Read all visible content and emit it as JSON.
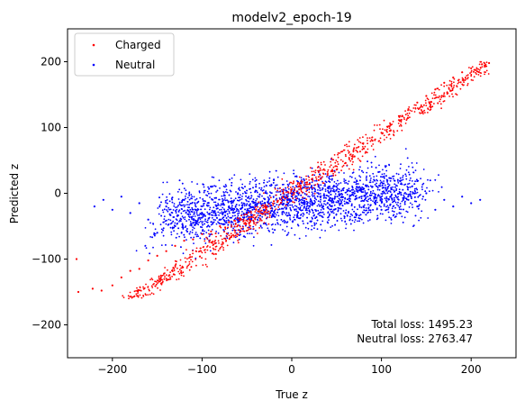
{
  "chart_data": {
    "type": "scatter",
    "title": "modelv2_epoch-19",
    "xlabel": "True z",
    "ylabel": "Predicted z",
    "xlim": [
      -250,
      250
    ],
    "ylim": [
      -250,
      250
    ],
    "xticks": [
      -200,
      -100,
      0,
      100,
      200
    ],
    "yticks": [
      -200,
      -100,
      0,
      100,
      200
    ],
    "grid": false,
    "legend_position": "top-left",
    "series": [
      {
        "name": "Charged",
        "color": "#ff0000",
        "marker": "dot",
        "points": [
          [
            -240,
            -100
          ],
          [
            -238,
            -150
          ],
          [
            -222,
            -145
          ],
          [
            -212,
            -148
          ],
          [
            -200,
            -140
          ],
          [
            -190,
            -128
          ],
          [
            -180,
            -118
          ],
          [
            -170,
            -115
          ],
          [
            -160,
            -102
          ],
          [
            -150,
            -95
          ],
          [
            -140,
            -88
          ],
          [
            -130,
            -80
          ],
          [
            -120,
            -72
          ],
          [
            -110,
            -70
          ],
          [
            -100,
            -62
          ],
          [
            -90,
            -58
          ],
          [
            -80,
            -50
          ],
          [
            -70,
            -44
          ],
          [
            -60,
            -38
          ],
          [
            -50,
            -32
          ],
          [
            -40,
            -25
          ],
          [
            -30,
            -20
          ],
          [
            -20,
            -12
          ],
          [
            -10,
            -6
          ],
          [
            0,
            0
          ],
          [
            10,
            8
          ],
          [
            20,
            14
          ],
          [
            30,
            20
          ],
          [
            40,
            28
          ],
          [
            50,
            36
          ],
          [
            60,
            46
          ],
          [
            70,
            56
          ],
          [
            80,
            68
          ],
          [
            90,
            80
          ],
          [
            100,
            92
          ],
          [
            110,
            104
          ],
          [
            120,
            116
          ],
          [
            130,
            128
          ],
          [
            140,
            138
          ],
          [
            150,
            148
          ],
          [
            160,
            158
          ],
          [
            170,
            168
          ],
          [
            180,
            176
          ],
          [
            190,
            184
          ],
          [
            200,
            190
          ],
          [
            212,
            196
          ],
          [
            220,
            198
          ]
        ]
      },
      {
        "name": "Neutral",
        "color": "#0000ff",
        "marker": "dot",
        "points": [
          [
            -220,
            -20
          ],
          [
            -210,
            -10
          ],
          [
            -200,
            -25
          ],
          [
            -190,
            -5
          ],
          [
            -180,
            -30
          ],
          [
            -170,
            -15
          ],
          [
            -160,
            -40
          ],
          [
            -150,
            -60
          ],
          [
            -140,
            -20
          ],
          [
            -130,
            -50
          ],
          [
            -120,
            -10
          ],
          [
            -110,
            -45
          ],
          [
            -100,
            -30
          ],
          [
            -90,
            10
          ],
          [
            -80,
            -40
          ],
          [
            -70,
            -20
          ],
          [
            -60,
            0
          ],
          [
            -50,
            -30
          ],
          [
            -40,
            10
          ],
          [
            -30,
            -15
          ],
          [
            -20,
            20
          ],
          [
            -10,
            -10
          ],
          [
            0,
            0
          ],
          [
            10,
            15
          ],
          [
            20,
            -20
          ],
          [
            30,
            10
          ],
          [
            40,
            -15
          ],
          [
            50,
            5
          ],
          [
            60,
            -30
          ],
          [
            70,
            0
          ],
          [
            80,
            -20
          ],
          [
            90,
            10
          ],
          [
            100,
            -25
          ],
          [
            110,
            -5
          ],
          [
            120,
            -30
          ],
          [
            130,
            -10
          ],
          [
            140,
            -20
          ],
          [
            150,
            0
          ],
          [
            160,
            -25
          ],
          [
            170,
            -10
          ],
          [
            180,
            -20
          ],
          [
            190,
            -5
          ],
          [
            200,
            -15
          ],
          [
            210,
            -10
          ]
        ]
      }
    ],
    "annotations": [
      "Total loss: 1495.23",
      "Neutral loss: 2763.47"
    ]
  }
}
